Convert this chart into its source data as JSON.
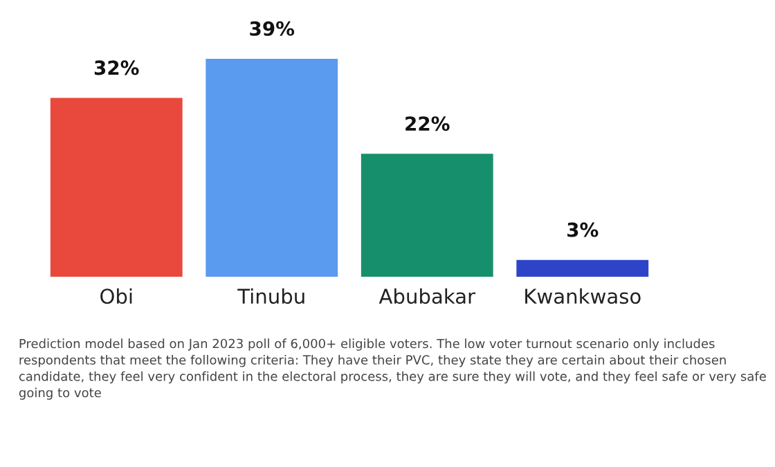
{
  "chart_data": {
    "type": "bar",
    "categories": [
      "Obi",
      "Tinubu",
      "Abubakar",
      "Kwankwaso"
    ],
    "values": [
      32,
      39,
      22,
      3
    ],
    "colors": [
      "#e8493c",
      "#5a9bef",
      "#16906c",
      "#2d44c8"
    ],
    "value_labels": [
      "32%",
      "39%",
      "22%",
      "3%"
    ],
    "tick_labels": "x",
    "annotations": [
      "Prediction model based on Jan 2023 poll of 6,000+ eligible voters. The low voter turnout scenario only includes respondents that meet the following criteria: They have their PVC, they state they are certain about their chosen candidate, they feel very confident in the electoral process, they are sure they will vote, and they feel safe or very safe going to vote"
    ]
  }
}
